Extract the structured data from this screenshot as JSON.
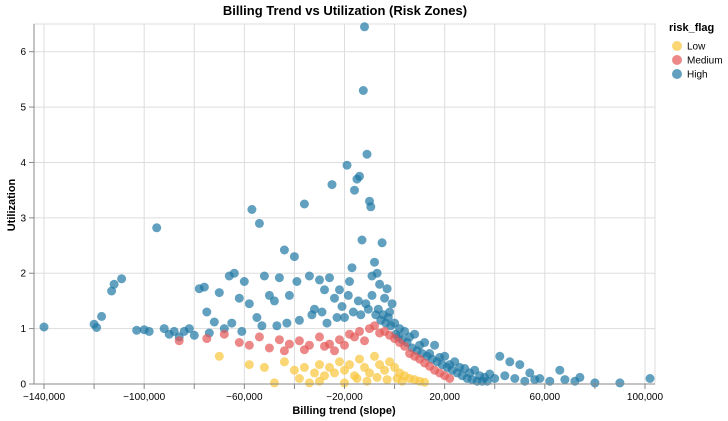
{
  "chart_data": {
    "type": "scatter",
    "title": "Billing Trend vs Utilization (Risk Zones)",
    "xlabel": "Billing trend (slope)",
    "ylabel": "Utilization",
    "xlim": [
      -144000,
      104000
    ],
    "ylim": [
      0,
      6.5
    ],
    "x_ticks": [
      -140000,
      -120000,
      -100000,
      -80000,
      -60000,
      -40000,
      -20000,
      0,
      20000,
      40000,
      60000,
      80000,
      100000
    ],
    "x_tick_labels": [
      "−140,000",
      "",
      "−100,000",
      "",
      "−60,000",
      "",
      "−20,000",
      "",
      "20,000",
      "",
      "60,000",
      "",
      "100,000"
    ],
    "y_ticks": [
      0,
      1,
      2,
      3,
      4,
      5,
      6
    ],
    "y_tick_labels": [
      "0",
      "1",
      "2",
      "3",
      "4",
      "5",
      "6"
    ],
    "grid": true,
    "legend": {
      "title": "risk_flag",
      "position": "top-right"
    },
    "series": [
      {
        "name": "High",
        "color": "#1f77a4",
        "points": [
          [
            -140000,
            1.03
          ],
          [
            -120000,
            1.08
          ],
          [
            -119000,
            1.02
          ],
          [
            -117000,
            1.22
          ],
          [
            -113000,
            1.68
          ],
          [
            -112000,
            1.8
          ],
          [
            -109000,
            1.9
          ],
          [
            -103000,
            0.97
          ],
          [
            -100000,
            0.98
          ],
          [
            -95000,
            2.82
          ],
          [
            -92000,
            1.0
          ],
          [
            -88000,
            0.95
          ],
          [
            -86000,
            0.85
          ],
          [
            -82000,
            1.0
          ],
          [
            -78000,
            1.72
          ],
          [
            -76000,
            1.75
          ],
          [
            -75000,
            1.3
          ],
          [
            -72000,
            1.12
          ],
          [
            -70000,
            1.65
          ],
          [
            -68000,
            1.0
          ],
          [
            -66000,
            1.95
          ],
          [
            -64000,
            2.0
          ],
          [
            -62000,
            1.55
          ],
          [
            -60000,
            1.85
          ],
          [
            -58000,
            1.45
          ],
          [
            -57000,
            3.15
          ],
          [
            -55000,
            1.2
          ],
          [
            -54000,
            2.9
          ],
          [
            -52000,
            1.95
          ],
          [
            -50000,
            1.6
          ],
          [
            -48000,
            1.5
          ],
          [
            -46000,
            1.92
          ],
          [
            -44000,
            2.42
          ],
          [
            -42000,
            1.6
          ],
          [
            -40000,
            2.3
          ],
          [
            -39000,
            1.85
          ],
          [
            -36000,
            3.25
          ],
          [
            -34000,
            1.95
          ],
          [
            -32000,
            1.35
          ],
          [
            -30000,
            1.88
          ],
          [
            -28000,
            1.7
          ],
          [
            -26000,
            1.92
          ],
          [
            -25000,
            3.6
          ],
          [
            -24000,
            1.55
          ],
          [
            -22000,
            1.7
          ],
          [
            -20000,
            1.2
          ],
          [
            -19000,
            3.95
          ],
          [
            -18000,
            1.85
          ],
          [
            -17000,
            2.1
          ],
          [
            -16000,
            3.5
          ],
          [
            -15000,
            3.7
          ],
          [
            -14000,
            3.75
          ],
          [
            -13000,
            2.6
          ],
          [
            -12000,
            6.45
          ],
          [
            -12500,
            5.3
          ],
          [
            -11000,
            4.15
          ],
          [
            -10000,
            3.3
          ],
          [
            -9500,
            3.2
          ],
          [
            -9000,
            1.95
          ],
          [
            -8000,
            2.2
          ],
          [
            -7000,
            2.0
          ],
          [
            -6000,
            1.8
          ],
          [
            -5000,
            2.55
          ],
          [
            -4000,
            1.55
          ],
          [
            -3000,
            1.72
          ],
          [
            -2000,
            1.3
          ],
          [
            -1000,
            1.45
          ],
          [
            0,
            1.1
          ],
          [
            2000,
            1.0
          ],
          [
            4000,
            0.95
          ],
          [
            6000,
            0.85
          ],
          [
            8000,
            0.9
          ],
          [
            10000,
            0.7
          ],
          [
            12000,
            0.75
          ],
          [
            14000,
            0.55
          ],
          [
            16000,
            0.7
          ],
          [
            18000,
            0.48
          ],
          [
            20000,
            0.5
          ],
          [
            22000,
            0.35
          ],
          [
            24000,
            0.4
          ],
          [
            26000,
            0.3
          ],
          [
            28000,
            0.28
          ],
          [
            30000,
            0.2
          ],
          [
            32000,
            0.25
          ],
          [
            34000,
            0.15
          ],
          [
            36000,
            0.12
          ],
          [
            38000,
            0.18
          ],
          [
            40000,
            0.1
          ],
          [
            42000,
            0.5
          ],
          [
            44000,
            0.15
          ],
          [
            46000,
            0.4
          ],
          [
            48000,
            0.1
          ],
          [
            50000,
            0.35
          ],
          [
            52000,
            0.05
          ],
          [
            54000,
            0.2
          ],
          [
            56000,
            0.08
          ],
          [
            58000,
            0.1
          ],
          [
            62000,
            0.05
          ],
          [
            66000,
            0.25
          ],
          [
            68000,
            0.08
          ],
          [
            72000,
            0.05
          ],
          [
            74000,
            0.12
          ],
          [
            80000,
            0.02
          ],
          [
            90000,
            0.02
          ],
          [
            102000,
            0.1
          ],
          [
            -98000,
            0.95
          ],
          [
            -90000,
            0.9
          ],
          [
            -84000,
            0.95
          ],
          [
            -80000,
            0.88
          ],
          [
            -74000,
            0.92
          ],
          [
            -65000,
            1.1
          ],
          [
            -61000,
            0.95
          ],
          [
            -53000,
            1.05
          ],
          [
            -47000,
            1.05
          ],
          [
            -43000,
            1.1
          ],
          [
            -38000,
            1.15
          ],
          [
            -33000,
            1.25
          ],
          [
            -29000,
            1.3
          ],
          [
            -27000,
            1.1
          ],
          [
            -23000,
            1.2
          ],
          [
            -21000,
            1.4
          ],
          [
            -18500,
            1.6
          ],
          [
            -16500,
            1.3
          ],
          [
            -14500,
            1.5
          ],
          [
            -13500,
            1.25
          ],
          [
            -11500,
            1.45
          ],
          [
            -10500,
            1.35
          ],
          [
            -9000,
            1.6
          ],
          [
            -7500,
            1.25
          ],
          [
            -6500,
            1.35
          ],
          [
            -5500,
            1.15
          ],
          [
            -4500,
            1.25
          ],
          [
            -3500,
            1.1
          ],
          [
            -2500,
            1.2
          ],
          [
            -1500,
            1.05
          ],
          [
            500,
            0.9
          ],
          [
            1500,
            0.85
          ],
          [
            3000,
            0.8
          ],
          [
            5000,
            0.75
          ],
          [
            7000,
            0.65
          ],
          [
            9000,
            0.6
          ],
          [
            11000,
            0.55
          ],
          [
            13000,
            0.5
          ],
          [
            15000,
            0.45
          ],
          [
            17000,
            0.4
          ],
          [
            19000,
            0.35
          ],
          [
            21000,
            0.3
          ],
          [
            23000,
            0.25
          ],
          [
            25000,
            0.2
          ],
          [
            27000,
            0.15
          ],
          [
            29000,
            0.1
          ],
          [
            31000,
            0.08
          ],
          [
            33000,
            0.05
          ],
          [
            35000,
            0.05
          ],
          [
            37000,
            0.05
          ]
        ]
      },
      {
        "name": "Medium",
        "color": "#e45756",
        "points": [
          [
            -86000,
            0.78
          ],
          [
            -75000,
            0.82
          ],
          [
            -68000,
            0.9
          ],
          [
            -62000,
            0.75
          ],
          [
            -58000,
            0.7
          ],
          [
            -54000,
            0.85
          ],
          [
            -50000,
            0.65
          ],
          [
            -46000,
            0.8
          ],
          [
            -42000,
            0.72
          ],
          [
            -38000,
            0.78
          ],
          [
            -34000,
            0.7
          ],
          [
            -30000,
            0.85
          ],
          [
            -26000,
            0.72
          ],
          [
            -22000,
            0.8
          ],
          [
            -18000,
            0.9
          ],
          [
            -14000,
            0.95
          ],
          [
            -10000,
            1.0
          ],
          [
            -8000,
            1.05
          ],
          [
            -6000,
            0.92
          ],
          [
            -4000,
            0.95
          ],
          [
            -2000,
            0.88
          ],
          [
            0,
            0.82
          ],
          [
            2000,
            0.75
          ],
          [
            4000,
            0.68
          ],
          [
            6000,
            0.55
          ],
          [
            8000,
            0.5
          ],
          [
            10000,
            0.45
          ],
          [
            12000,
            0.38
          ],
          [
            14000,
            0.32
          ],
          [
            16000,
            0.25
          ],
          [
            18000,
            0.2
          ],
          [
            20000,
            0.15
          ],
          [
            22000,
            0.1
          ],
          [
            -44000,
            0.6
          ],
          [
            -36000,
            0.62
          ],
          [
            -28000,
            0.68
          ],
          [
            -20000,
            0.7
          ],
          [
            -12000,
            0.78
          ],
          [
            -16000,
            0.85
          ],
          [
            -24000,
            0.6
          ]
        ]
      },
      {
        "name": "Low",
        "color": "#f8c43a",
        "points": [
          [
            -70000,
            0.5
          ],
          [
            -58000,
            0.35
          ],
          [
            -52000,
            0.3
          ],
          [
            -48000,
            0.02
          ],
          [
            -44000,
            0.4
          ],
          [
            -40000,
            0.25
          ],
          [
            -36000,
            0.3
          ],
          [
            -34000,
            0.02
          ],
          [
            -32000,
            0.2
          ],
          [
            -30000,
            0.35
          ],
          [
            -28000,
            0.15
          ],
          [
            -26000,
            0.3
          ],
          [
            -24000,
            0.2
          ],
          [
            -22000,
            0.4
          ],
          [
            -20000,
            0.25
          ],
          [
            -18000,
            0.35
          ],
          [
            -16000,
            0.15
          ],
          [
            -14000,
            0.45
          ],
          [
            -12000,
            0.3
          ],
          [
            -10000,
            0.2
          ],
          [
            -8000,
            0.5
          ],
          [
            -6000,
            0.35
          ],
          [
            -4000,
            0.25
          ],
          [
            -2000,
            0.4
          ],
          [
            0,
            0.3
          ],
          [
            2000,
            0.2
          ],
          [
            4000,
            0.15
          ],
          [
            6000,
            0.1
          ],
          [
            8000,
            0.08
          ],
          [
            10000,
            0.05
          ],
          [
            12000,
            0.03
          ],
          [
            -38000,
            0.1
          ],
          [
            -30000,
            0.05
          ],
          [
            -20000,
            0.02
          ],
          [
            -15000,
            0.1
          ],
          [
            -11000,
            0.05
          ],
          [
            -7000,
            0.12
          ],
          [
            -3000,
            0.08
          ],
          [
            1000,
            0.1
          ],
          [
            3000,
            0.05
          ]
        ]
      }
    ]
  }
}
